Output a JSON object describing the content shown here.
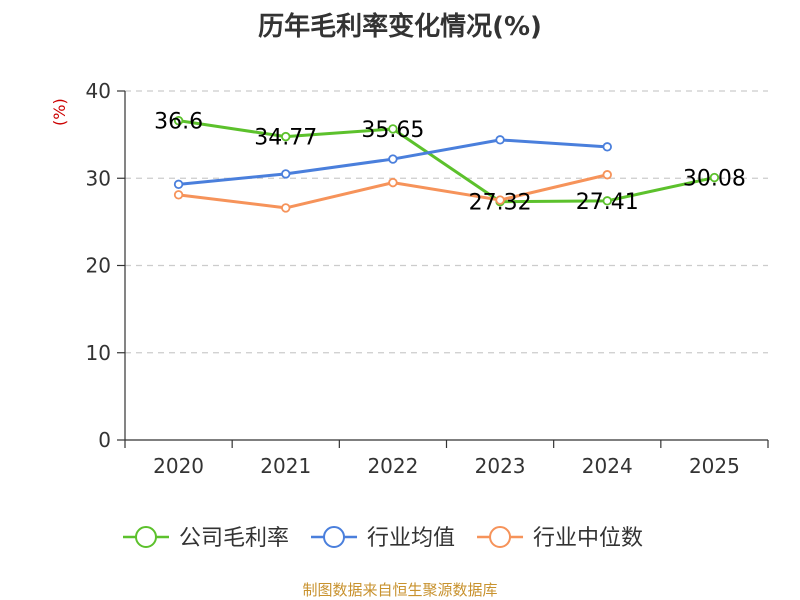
{
  "chart_data": {
    "type": "line",
    "title": "历年毛利率变化情况(%)",
    "ylabel": "(%)",
    "xlabel": "",
    "categories": [
      "2020",
      "2021",
      "2022",
      "2023",
      "2024",
      "2025"
    ],
    "ylim": [
      0,
      40
    ],
    "yticks": [
      "0",
      "10",
      "20",
      "30",
      "40"
    ],
    "grid": true,
    "legend_position": "bottom",
    "series": [
      {
        "name": "公司毛利率",
        "color": "#5cc12c",
        "values": [
          36.6,
          34.77,
          35.65,
          27.32,
          27.41,
          30.08
        ],
        "labels": [
          "36.6",
          "34.77",
          "35.65",
          "27.32",
          "27.41",
          "30.08"
        ]
      },
      {
        "name": "行业均值",
        "color": "#4a7fdc",
        "values": [
          29.3,
          30.5,
          32.2,
          34.4,
          33.6,
          null
        ]
      },
      {
        "name": "行业中位数",
        "color": "#f6935a",
        "values": [
          28.1,
          26.6,
          29.5,
          27.5,
          30.4,
          null
        ]
      }
    ]
  },
  "source_text": "制图数据来自恒生聚源数据库"
}
